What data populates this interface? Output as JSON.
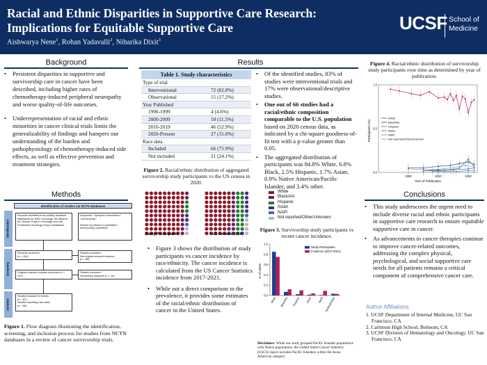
{
  "header": {
    "title_line1": "Racial and Ethnic Disparities in Supportive Care Research:",
    "title_line2": "Implications for Equitable Supportive Care",
    "authors": [
      {
        "name": "Aishwarya Nene",
        "aff": "1"
      },
      {
        "name": "Rohan Yadavalli",
        "aff": "2"
      },
      {
        "name": "Niharika Dixit",
        "aff": "3"
      }
    ],
    "logo": {
      "wordmark": "UCSF",
      "line1": "School of",
      "line2": "Medicine"
    }
  },
  "colors": {
    "header_bg": "#0e2d62",
    "table_header": "#c3d6ee",
    "affiliation_heading": "#6c8fc4"
  },
  "background": {
    "heading": "Background",
    "bullets": [
      "Persistent disparities in supportive and survivorship care in cancer have been described, including higher rates of chemotherapy-induced peripheral neuropathy and worse quality-of-life outcomes.",
      "Underrepresentation of racial and ethnic minorities in cancer clinical trials limits the generalizability of findings and hampers our understanding of the burden and pathophysiology of chemotherapy-induced side effects, as well as effective prevention and treatment strategies."
    ]
  },
  "methods": {
    "heading": "Methods",
    "flow": {
      "top": "Identification of studies via NCTN databases",
      "phases": [
        "Identification",
        "Screening",
        "Included"
      ],
      "identified": "Records identified from publicly available databases for NRG Oncology, the Alliance for Clinical Trials in Oncology, and the Southwest Oncology Group Databases",
      "keywords": "Keywords: \"symptom intervention\", \"survivorship\"\n\nSearch by research committee: survivorship committee",
      "screened": "Records screened\n(n = 190)",
      "excluded1": "Studies excluded:\nNot original research articles\n(n = 89)",
      "original": "Original research studies screened (n = 101)",
      "excluded2": "Studies excluded:\nSecondary analyses (n = 14)",
      "included": "Studies included in review\n(n = 87)\nStudies reporting race data\n(n = 66)"
    },
    "caption_bold": "Figure 1.",
    "caption_text": " Flow diagram illustrating the identification, screening, and inclusion process for studies from NCTN databases in a review of cancer survivorship trials."
  },
  "results": {
    "heading": "Results",
    "table": {
      "title": "Table 1. Study characteristics",
      "rows": [
        {
          "label": "Type of trial",
          "value": "",
          "kind": "cat"
        },
        {
          "label": "Interventional",
          "value": "72 (82.8%)",
          "kind": "sub"
        },
        {
          "label": "Observational",
          "value": "15 (17.2%)",
          "kind": "sub"
        },
        {
          "label": "Year Published",
          "value": "",
          "kind": "cat"
        },
        {
          "label": "1990-1999",
          "value": "4 (4.6%)",
          "kind": "sub"
        },
        {
          "label": "2000-2009",
          "value": "10 (11.5%)",
          "kind": "sub"
        },
        {
          "label": "2010-2019",
          "value": "46 (52.9%)",
          "kind": "sub"
        },
        {
          "label": "2020-Present",
          "value": "27 (31.0%)",
          "kind": "sub"
        },
        {
          "label": "Race data",
          "value": "",
          "kind": "cat"
        },
        {
          "label": "Included",
          "value": "66 (75.9%)",
          "kind": "sub"
        },
        {
          "label": "Not included",
          "value": "21 (24.1%)",
          "kind": "sub"
        }
      ]
    },
    "fig2": {
      "caption_bold": "Figure 2.",
      "caption_text": " Racial/ethnic distribution of aggregated survivorship study participants vs the US census in 2020.",
      "label_left": "Study Participants",
      "label_right": "US Census 2020"
    },
    "legend": [
      {
        "name": "White",
        "color": "#8b1a2b"
      },
      {
        "name": "Black/AA",
        "color": "#6f1f5d"
      },
      {
        "name": "Hispanic",
        "color": "#1e7d32"
      },
      {
        "name": "Asian",
        "color": "#4a2c88"
      },
      {
        "name": "NAPI",
        "color": "#3d6fb5"
      },
      {
        "name": "Not reported/Other/Unknown",
        "color": "#b9b9b9"
      }
    ],
    "bullets_right": [
      {
        "bold": "",
        "text": "Of the identified studies, 83% of studies were interventional trials and 17% were observational/descriptive studies."
      },
      {
        "bold": "One out of 66 studies had a racial/ethnic composition comparable to the U.S. population",
        "text": " based on 2020 census data, as indicated by a chi-square goodness-of-fit test with a p-value greater than 0.05."
      },
      {
        "bold": "",
        "text": "The aggregated distribution of participants was 84.8% White, 6.8% Black, 2.5% Hispanic, 1.7% Asian, 0.9% Native American/Pacific Islander, and 3.4% other."
      }
    ],
    "bullets_mid": [
      "Figure 3 shows the distribution of study participants vs cancer incidence by race/ethnicity. The cancer incidence is calculated from the US Cancer Statistics incidence from 2017-2021.",
      "While not a direct comparison to the prevalence, it provides some estimates of the racial/ethnic distribution of cancer in the United States."
    ],
    "fig3": {
      "caption_bold": "Figure 3.",
      "caption_text": " Survivorship study participants vs recent cancer incidence.",
      "disclaimer_bold": "Disclaimer:",
      "disclaimer_text": " While our study grouped Pacific Islander populations with Native populations, the United States Cancer Statistics (USCS) report includes Pacific Islanders within the Asian American category."
    },
    "fig4": {
      "caption_bold": "Figure 4.",
      "caption_text": " Racial/ethnic distribution of survivorship study participants over time as determined by year of publication."
    }
  },
  "conclusions": {
    "heading": "Conclusions",
    "bullets": [
      "This study underscores the urgent need to include diverse racial and ethnic participants in supportive care research to ensure equitable supportive care in cancer.",
      "As advancements in cancer therapies continue to improve cancer-related outcomes, addressing the complex physical, psychological, and social supportive care needs for all patients remains a critical component of comprehensive cancer care."
    ]
  },
  "affiliations": {
    "heading": "Author Affiliations",
    "items": [
      "1. UCSF Department of Internal Medicine, UC San Francisco, CA",
      "2. Carlmont High School, Belmont, CA",
      "3. UCSF Division of Hematology and Oncology, UC San Francisco, CA"
    ]
  },
  "chart_data": [
    {
      "type": "waffle",
      "title": "",
      "categories": [
        "White",
        "Black/AA",
        "Hispanic",
        "Asian",
        "NAPI",
        "Not reported/Other/Unknown"
      ],
      "series": [
        {
          "name": "Study Participants",
          "values": [
            85,
            7,
            3,
            2,
            1,
            3
          ]
        },
        {
          "name": "US Census 2020",
          "values": [
            58,
            12,
            19,
            6,
            1,
            4
          ]
        }
      ]
    },
    {
      "type": "bar",
      "title": "",
      "categories": [
        "White",
        "Black/AA",
        "Hispanic",
        "Asian",
        "NAPI",
        "Not reported/Other"
      ],
      "ylabel": "% of cases",
      "ylim": [
        0,
        1.0
      ],
      "yticks": [
        "0.0",
        "0.2",
        "0.4",
        "0.6",
        "0.8",
        "1.0"
      ],
      "series": [
        {
          "name": "Study Participants",
          "color": "#1f3f8f",
          "values": [
            0.85,
            0.07,
            0.025,
            0.017,
            0.009,
            0.034
          ]
        },
        {
          "name": "Incidence (2017-2021)",
          "color": "#b3205a",
          "values": [
            0.75,
            0.12,
            0.1,
            0.04,
            0.09,
            0.03
          ]
        }
      ]
    },
    {
      "type": "line",
      "title": "",
      "xlabel": "Year of Publication",
      "ylabel": "Participants (%)",
      "xlim": [
        1990,
        2023
      ],
      "ylim": [
        0,
        1.0
      ],
      "xticks": [
        "2000",
        "2010",
        "2020"
      ],
      "yticks": [
        "0.0",
        "0.5",
        "1.0"
      ],
      "legend_position": "left",
      "series": [
        {
          "name": "White",
          "color": "#b3205a",
          "x": [
            1994,
            1997,
            2001,
            2004,
            2007,
            2010,
            2012,
            2013,
            2014,
            2015,
            2016,
            2017,
            2018,
            2019,
            2020,
            2021,
            2022
          ],
          "y": [
            0.95,
            0.93,
            0.9,
            0.88,
            0.92,
            0.85,
            0.86,
            0.83,
            0.9,
            0.82,
            0.88,
            0.72,
            0.87,
            0.84,
            0.68,
            0.8,
            0.83
          ]
        },
        {
          "name": "Black/AA",
          "color": "#1f3f8f",
          "x": [
            2000,
            2005,
            2010,
            2014,
            2017,
            2020,
            2022
          ],
          "y": [
            0.05,
            0.05,
            0.07,
            0.08,
            0.1,
            0.12,
            0.09
          ]
        },
        {
          "name": "Hispanic",
          "color": "#2e8b57",
          "x": [
            2005,
            2010,
            2014,
            2017,
            2020,
            2022
          ],
          "y": [
            0.02,
            0.03,
            0.03,
            0.05,
            0.15,
            0.06
          ]
        },
        {
          "name": "Asian",
          "color": "#6a4fb5",
          "x": [
            2005,
            2010,
            2015,
            2020,
            2022
          ],
          "y": [
            0.02,
            0.02,
            0.03,
            0.04,
            0.05
          ]
        },
        {
          "name": "NAPI",
          "color": "#3d8fc4",
          "x": [
            2008,
            2012,
            2016,
            2020,
            2022
          ],
          "y": [
            0.01,
            0.01,
            0.01,
            0.02,
            0.02
          ]
        },
        {
          "name": "Not reported/Other/Unknown",
          "color": "#999999",
          "x": [
            2000,
            2008,
            2014,
            2019,
            2022
          ],
          "y": [
            0.04,
            0.03,
            0.05,
            0.08,
            0.06
          ]
        }
      ]
    }
  ]
}
